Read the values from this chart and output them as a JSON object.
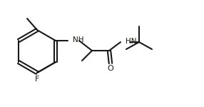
{
  "background_color": "#ffffff",
  "bond_color": "#1a1a1a",
  "bond_lw": 1.5,
  "atoms": {
    "F": {
      "color": "#333333"
    },
    "N": {
      "color": "#333399"
    },
    "O": {
      "color": "#333333"
    },
    "C": {
      "color": "#333333"
    }
  },
  "font_size": 7.5
}
